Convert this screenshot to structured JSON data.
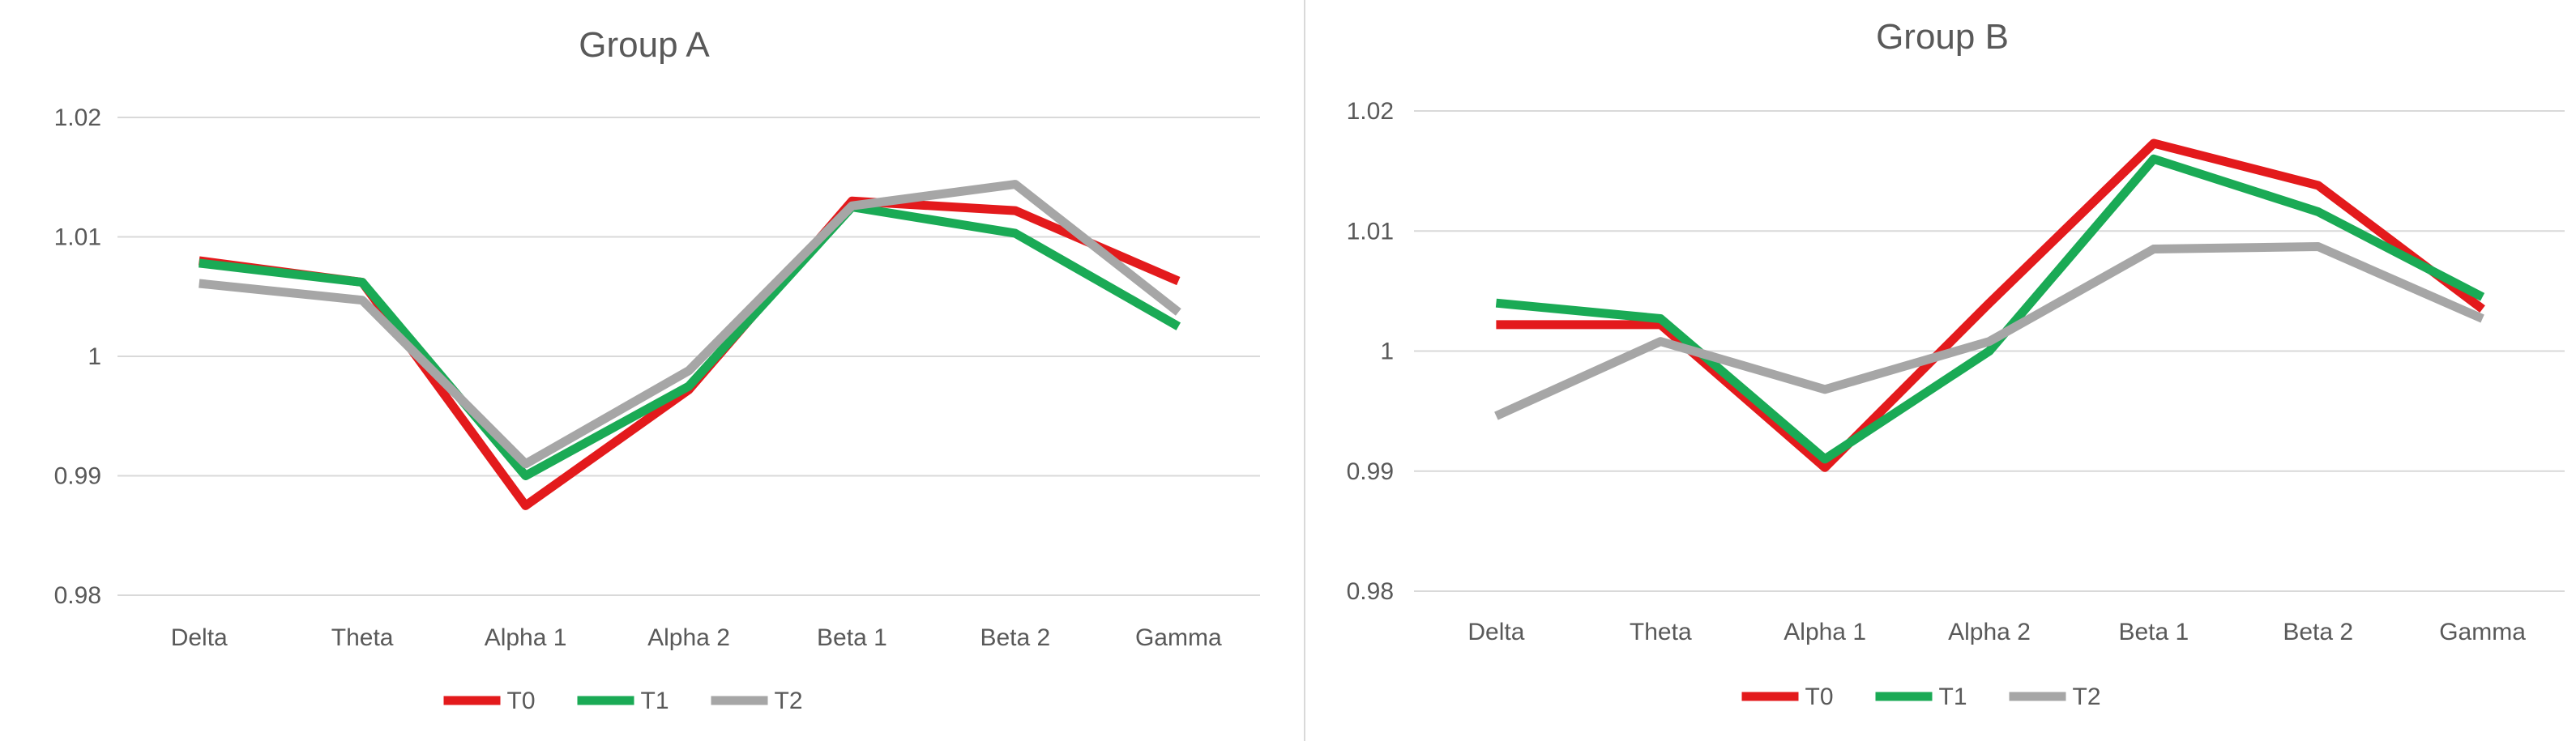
{
  "chart_data": [
    {
      "type": "line",
      "title": "Group A",
      "categories": [
        "Delta",
        "Theta",
        "Alpha 1",
        "Alpha 2",
        "Beta 1",
        "Beta 2",
        "Gamma"
      ],
      "yticks": [
        "1.02",
        "1.01",
        "1",
        "0.99",
        "0.98"
      ],
      "ylim": [
        0.98,
        1.02
      ],
      "grid": true,
      "legend": "bottom",
      "series": [
        {
          "name": "T0",
          "color": "#e31a1c",
          "values": [
            1.008,
            1.0062,
            0.9875,
            0.9972,
            1.013,
            1.0122,
            1.0063
          ]
        },
        {
          "name": "T1",
          "color": "#1aaa55",
          "values": [
            1.0078,
            1.0062,
            0.99,
            0.9975,
            1.0125,
            1.0103,
            1.0025
          ]
        },
        {
          "name": "T2",
          "color": "#a6a6a6",
          "values": [
            1.0061,
            1.0047,
            0.991,
            0.9988,
            1.0126,
            1.0144,
            1.0037
          ]
        }
      ]
    },
    {
      "type": "line",
      "title": "Group B",
      "categories": [
        "Delta",
        "Theta",
        "Alpha 1",
        "Alpha 2",
        "Beta 1",
        "Beta 2",
        "Gamma"
      ],
      "yticks": [
        "1.02",
        "1.01",
        "1",
        "0.99",
        "0.98"
      ],
      "ylim": [
        0.98,
        1.02
      ],
      "grid": true,
      "legend": "bottom",
      "series": [
        {
          "name": "T0",
          "color": "#e31a1c",
          "values": [
            1.0022,
            1.0022,
            0.9903,
            1.004,
            1.0173,
            1.0138,
            1.0035
          ]
        },
        {
          "name": "T1",
          "color": "#1aaa55",
          "values": [
            1.004,
            1.0027,
            0.991,
            1.0,
            1.016,
            1.0116,
            1.0045
          ]
        },
        {
          "name": "T2",
          "color": "#a6a6a6",
          "values": [
            0.9946,
            1.0008,
            0.9968,
            1.0008,
            1.0085,
            1.0087,
            1.0027
          ]
        }
      ]
    }
  ]
}
